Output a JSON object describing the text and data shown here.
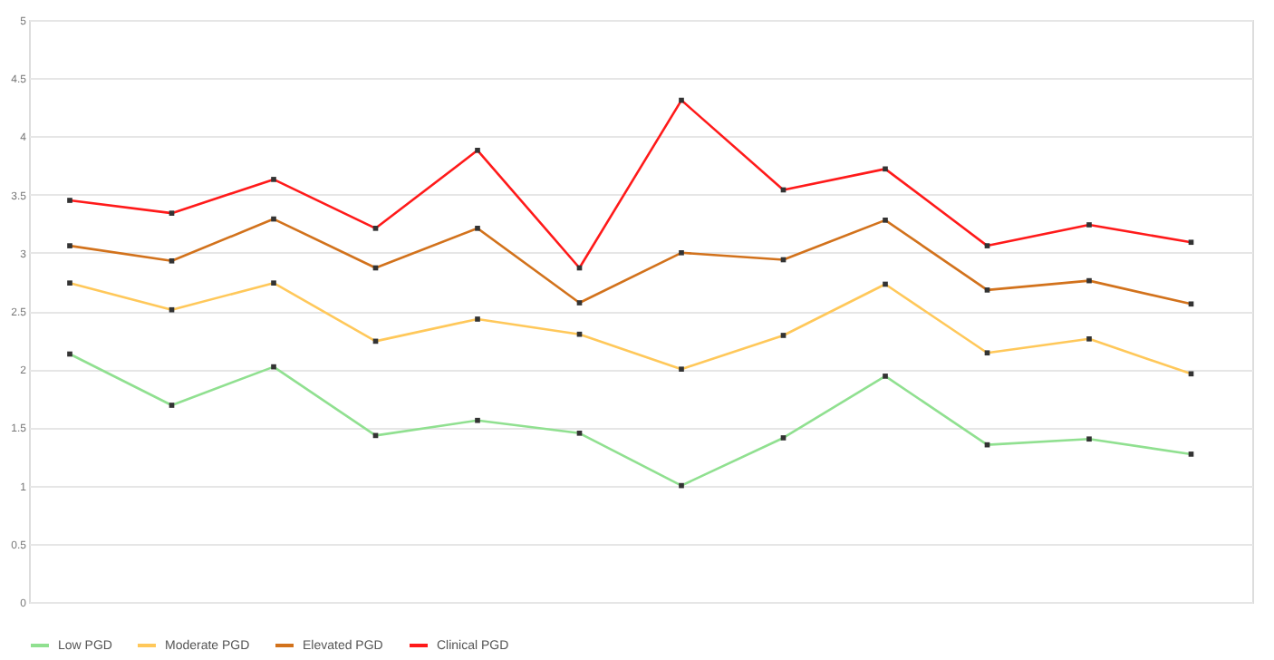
{
  "chart_data": {
    "type": "line",
    "categories": [
      null,
      null,
      null,
      null,
      null,
      null,
      null,
      null,
      null,
      null,
      null,
      null
    ],
    "series": [
      {
        "name": "Low PGD",
        "color": "#90e090",
        "values": [
          2.13,
          1.69,
          2.02,
          1.43,
          1.56,
          1.45,
          1.0,
          1.41,
          1.94,
          1.35,
          1.4,
          1.27
        ]
      },
      {
        "name": "Moderate PGD",
        "color": "#ffc85a",
        "values": [
          2.74,
          2.51,
          2.74,
          2.24,
          2.43,
          2.3,
          2.0,
          2.29,
          2.73,
          2.14,
          2.26,
          1.96
        ]
      },
      {
        "name": "Elevated PGD",
        "color": "#d2721c",
        "values": [
          3.06,
          2.93,
          3.29,
          2.87,
          3.21,
          2.57,
          3.0,
          2.94,
          3.28,
          2.68,
          2.76,
          2.56
        ]
      },
      {
        "name": "Clinical PGD",
        "color": "#ff1a1a",
        "values": [
          3.45,
          3.34,
          3.63,
          3.21,
          3.88,
          2.87,
          4.31,
          3.54,
          3.72,
          3.06,
          3.24,
          3.09
        ]
      }
    ],
    "ylim": [
      0,
      5
    ],
    "yticks": [
      0,
      0.5,
      1,
      1.5,
      2,
      2.5,
      3,
      3.5,
      4,
      4.5,
      5
    ],
    "grid": "y",
    "tick_labels": "y",
    "legend": "bottom",
    "marker": "square",
    "line_style": "solid"
  }
}
